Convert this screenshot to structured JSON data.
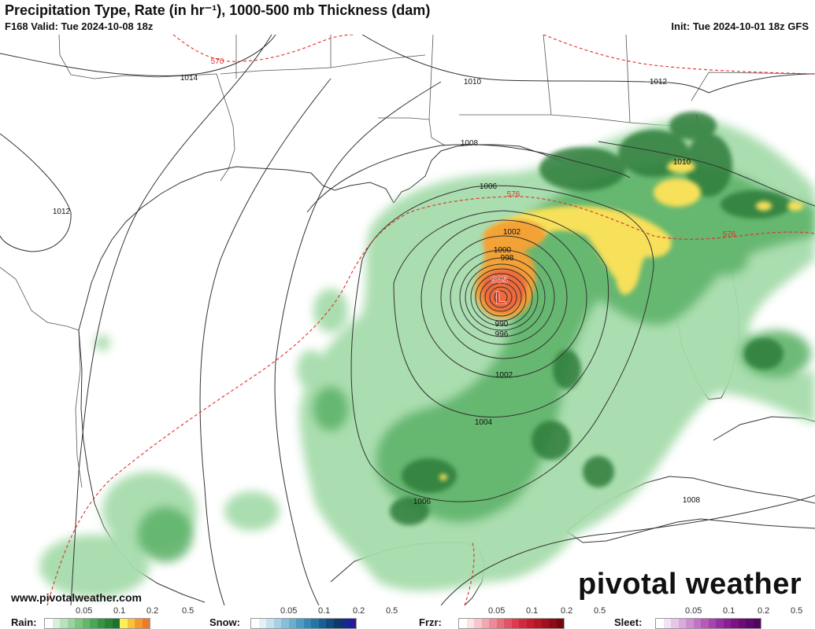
{
  "header": {
    "title": "Precipitation Type, Rate (in hr⁻¹), 1000-500 mb Thickness (dam)",
    "valid": "F168 Valid: Tue 2024-10-08 18z",
    "init": "Init: Tue 2024-10-01 18z GFS"
  },
  "map": {
    "low_symbol": "L",
    "low_pressure_label": "965",
    "isobar_labels": {
      "p1014": "1014",
      "p1012_w": "1012",
      "p1010_n": "1010",
      "p1012_ne": "1012",
      "p1008_coast": "1008",
      "p1010_fl": "1010",
      "p1006_n": "1006",
      "p1002_n": "1002",
      "p1000": "1000",
      "p998": "998",
      "p990": "990",
      "p996": "996",
      "p1002_s": "1002",
      "p1004": "1004",
      "p1006_s": "1006",
      "p1008_cuba": "1008"
    },
    "thickness_labels": {
      "t570": "570",
      "t576_w": "576",
      "t576_e": "576"
    },
    "colors": {
      "isobar": "#333333",
      "thickness": "#e0302a",
      "border": "#444444",
      "rain_light": "#a6dcab",
      "rain_mid": "#5fb36a",
      "rain_heavy": "#2e7d3a",
      "rain_yellow": "#f7e05a",
      "rain_orange": "#f3a236",
      "rain_red": "#ef6a3a"
    }
  },
  "footer": {
    "website": "www.pivotalweather.com",
    "brand": "pivotal weather"
  },
  "legend": {
    "rain": {
      "label": "Rain:",
      "ticks": [
        "0.05",
        "0.1",
        "0.2",
        "0.5"
      ],
      "colors": [
        "#ffffff",
        "#d8efd9",
        "#b8e2bb",
        "#98d49d",
        "#7cc683",
        "#63b76b",
        "#4ba655",
        "#379444",
        "#2a8337",
        "#1d732c",
        "#ffee55",
        "#f9c23a",
        "#f39a2e",
        "#ee7a2a"
      ]
    },
    "snow": {
      "label": "Snow:",
      "ticks": [
        "0.05",
        "0.1",
        "0.2",
        "0.5"
      ],
      "colors": [
        "#ffffff",
        "#e3f1f7",
        "#c4e2ee",
        "#a4d1e4",
        "#86bfd9",
        "#6aaecf",
        "#4f9bc3",
        "#3788b6",
        "#2475a8",
        "#1a5f93",
        "#124b7d",
        "#0d3a66",
        "#162a8e",
        "#261c9a"
      ]
    },
    "frzr": {
      "label": "Frzr:",
      "ticks": [
        "0.05",
        "0.1",
        "0.2",
        "0.5"
      ],
      "colors": [
        "#ffffff",
        "#fbe3e6",
        "#f7c6cc",
        "#f3a8b1",
        "#ee8a96",
        "#e96e7b",
        "#e35363",
        "#dc3a4d",
        "#d22a3c",
        "#c51d2f",
        "#b41626",
        "#a1101e",
        "#8c0b18",
        "#760612"
      ]
    },
    "sleet": {
      "label": "Sleet:",
      "ticks": [
        "0.05",
        "0.1",
        "0.2",
        "0.5"
      ],
      "colors": [
        "#ffffff",
        "#f3e2f3",
        "#e7c6e8",
        "#dbaadc",
        "#cf8ed0",
        "#c273c5",
        "#b55ab9",
        "#a743ad",
        "#982fa0",
        "#891f93",
        "#7a1485",
        "#6c0d77",
        "#5e0869",
        "#50045b"
      ]
    }
  }
}
